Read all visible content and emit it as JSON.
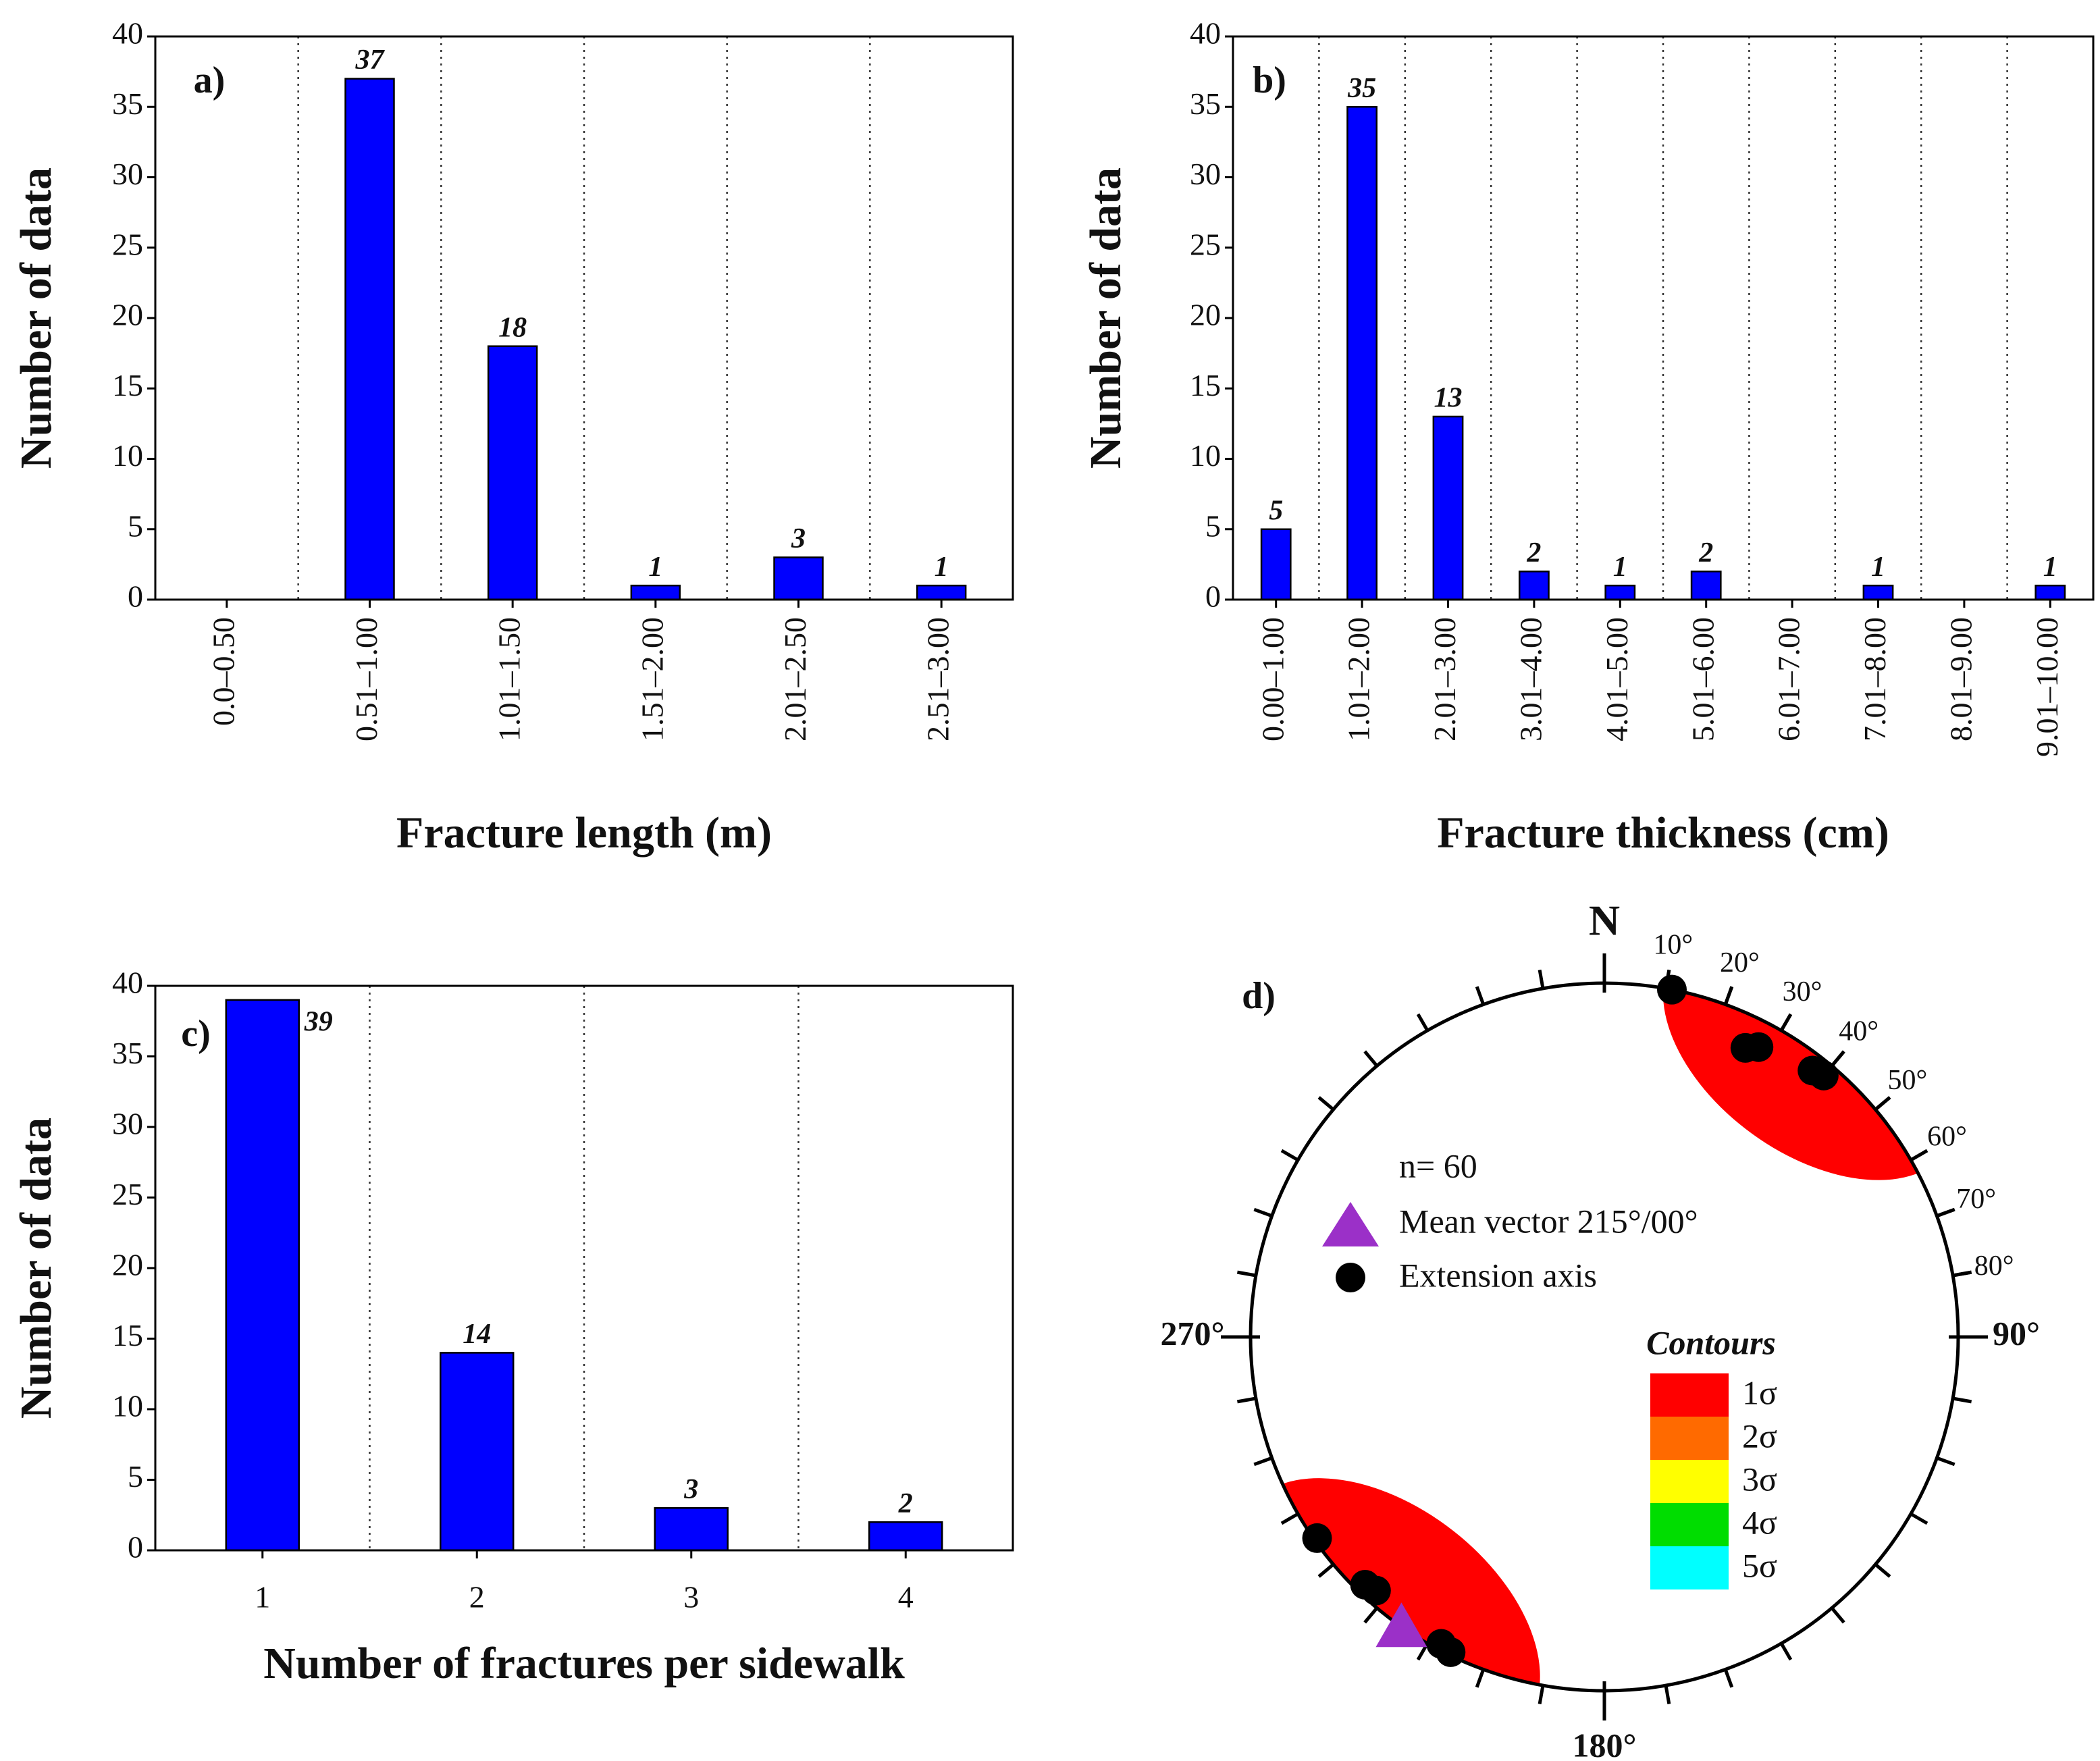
{
  "chart_data": [
    {
      "type": "bar",
      "panel_label": "a)",
      "xlabel": "Fracture length (m)",
      "ylabel": "Number of data",
      "categories": [
        "0.0–0.50",
        "0.51–1.00",
        "1.01–1.50",
        "1.51–2.00",
        "2.01–2.50",
        "2.51–3.00"
      ],
      "values": [
        0,
        37,
        18,
        1,
        3,
        1
      ],
      "value_labels_shown": [
        false,
        true,
        true,
        true,
        true,
        true
      ],
      "color": "#0000ff",
      "ylim": [
        0,
        40
      ],
      "yticks": [
        0,
        5,
        10,
        15,
        20,
        25,
        30,
        35,
        40
      ],
      "separators": true,
      "rotate_x_labels": true
    },
    {
      "type": "bar",
      "panel_label": "b)",
      "xlabel": "Fracture thickness (cm)",
      "ylabel": "Number of data",
      "categories": [
        "0.00–1.00",
        "1.01–2.00",
        "2.01–3.00",
        "3.01–4.00",
        "4.01–5.00",
        "5.01–6.00",
        "6.01–7.00",
        "7.01–8.00",
        "8.01–9.00",
        "9.01–10.00"
      ],
      "values": [
        5,
        35,
        13,
        2,
        1,
        2,
        0,
        1,
        0,
        1
      ],
      "value_labels_shown": [
        true,
        true,
        true,
        true,
        true,
        true,
        false,
        true,
        false,
        true
      ],
      "color": "#0000ff",
      "ylim": [
        0,
        40
      ],
      "yticks": [
        0,
        5,
        10,
        15,
        20,
        25,
        30,
        35,
        40
      ],
      "separators": true,
      "rotate_x_labels": true
    },
    {
      "type": "bar",
      "panel_label": "c)",
      "xlabel": "Number of fractures per sidewalk",
      "ylabel": "Number of data",
      "categories": [
        "1",
        "2",
        "3",
        "4"
      ],
      "values": [
        39,
        14,
        3,
        2
      ],
      "value_labels_shown": [
        true,
        true,
        true,
        true
      ],
      "color": "#0000ff",
      "ylim": [
        0,
        40
      ],
      "yticks": [
        0,
        5,
        10,
        15,
        20,
        25,
        30,
        35,
        40
      ],
      "separators": true,
      "rotate_x_labels": false
    },
    {
      "type": "stereonet",
      "panel_label": "d)",
      "rim_labels": [
        {
          "value": 0,
          "label": "N"
        },
        {
          "value": 10,
          "label": "10°"
        },
        {
          "value": 20,
          "label": "20°"
        },
        {
          "value": 30,
          "label": "30°"
        },
        {
          "value": 40,
          "label": "40°"
        },
        {
          "value": 50,
          "label": "50°"
        },
        {
          "value": 60,
          "label": "60°"
        },
        {
          "value": 70,
          "label": "70°"
        },
        {
          "value": 80,
          "label": "80°"
        },
        {
          "value": 90,
          "label": "90°"
        },
        {
          "value": 180,
          "label": "180°"
        },
        {
          "value": 270,
          "label": "270°"
        }
      ],
      "n_label": "n= 60",
      "mean_label": "Mean vector 215°/00°",
      "points_label": "Extension axis",
      "mean_trend": 215,
      "mean_plunge": 0,
      "mean_color": "#9b30c8",
      "point_color": "#000000",
      "trend": [
        11,
        26,
        28,
        38,
        40,
        235,
        224,
        222,
        208,
        206
      ],
      "plunge": [
        0,
        10,
        8,
        5,
        4,
        1,
        3,
        4,
        2,
        1
      ],
      "contours_title": "Contours",
      "contours": [
        {
          "label": "1σ",
          "color": "#ff0000"
        },
        {
          "label": "2σ",
          "color": "#ff6a00"
        },
        {
          "label": "3σ",
          "color": "#ffff00"
        },
        {
          "label": "4σ",
          "color": "#00dd00"
        },
        {
          "label": "5σ",
          "color": "#00ffff"
        }
      ]
    }
  ]
}
